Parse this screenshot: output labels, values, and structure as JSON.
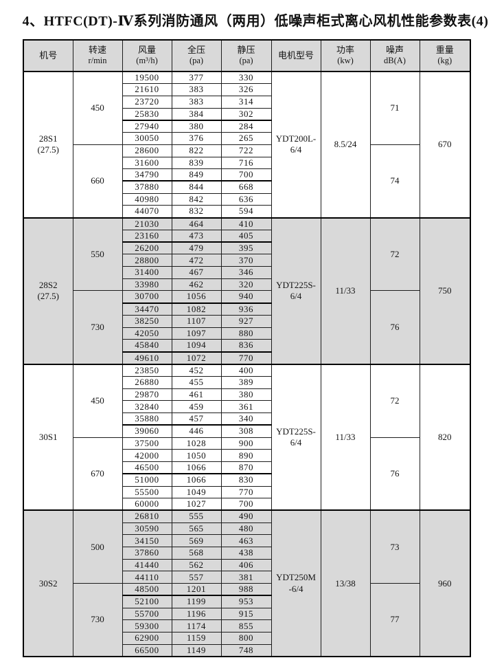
{
  "page": {
    "title": "4、HTFC(DT)-Ⅳ系列消防通风（两用）低噪声柜式离心风机性能参数表(4)"
  },
  "colors": {
    "header_bg": "#d9d9d9",
    "shaded_section_bg": "#d9d9d9",
    "border": "#000000",
    "text": "#141414"
  },
  "table": {
    "columns": [
      {
        "label": "机号",
        "sub": ""
      },
      {
        "label": "转速",
        "sub": "r/min"
      },
      {
        "label": "风量",
        "sub": "(m³/h)"
      },
      {
        "label": "全压",
        "sub": "(pa)"
      },
      {
        "label": "静压",
        "sub": "(pa)"
      },
      {
        "label": "电机型号",
        "sub": ""
      },
      {
        "label": "功率",
        "sub": "(kw)"
      },
      {
        "label": "噪声",
        "sub": "dB(A)"
      },
      {
        "label": "重量",
        "sub": "(kg)"
      }
    ],
    "sections": [
      {
        "model_lines": [
          "28S1",
          "(27.5)"
        ],
        "shaded": false,
        "motor_lines": [
          "YDT200L-",
          "6/4"
        ],
        "power": "8.5/24",
        "weight": "670",
        "thick_after": [
          3,
          8
        ],
        "halves": [
          {
            "speed": "450",
            "noise": "71",
            "rows": [
              [
                19500,
                377,
                330
              ],
              [
                21610,
                383,
                326
              ],
              [
                23720,
                383,
                314
              ],
              [
                25830,
                384,
                302
              ],
              [
                27940,
                380,
                284
              ],
              [
                30050,
                376,
                265
              ]
            ]
          },
          {
            "speed": "660",
            "noise": "74",
            "rows": [
              [
                28600,
                822,
                722
              ],
              [
                31600,
                839,
                716
              ],
              [
                34790,
                849,
                700
              ],
              [
                37880,
                844,
                668
              ],
              [
                40980,
                842,
                636
              ],
              [
                44070,
                832,
                594
              ]
            ]
          }
        ]
      },
      {
        "model_lines": [
          "28S2",
          "(27.5)"
        ],
        "shaded": true,
        "motor_lines": [
          "YDT225S-",
          "6/4"
        ],
        "power": "11/33",
        "weight": "750",
        "thick_after": [
          1,
          6,
          10
        ],
        "halves": [
          {
            "speed": "550",
            "noise": "72",
            "rows": [
              [
                21030,
                464,
                410
              ],
              [
                23160,
                473,
                405
              ],
              [
                26200,
                479,
                395
              ],
              [
                28800,
                472,
                370
              ],
              [
                31400,
                467,
                346
              ],
              [
                33980,
                462,
                320
              ]
            ]
          },
          {
            "speed": "730",
            "noise": "76",
            "rows": [
              [
                30700,
                1056,
                940
              ],
              [
                34470,
                1082,
                936
              ],
              [
                38250,
                1107,
                927
              ],
              [
                42050,
                1097,
                880
              ],
              [
                45840,
                1094,
                836
              ],
              [
                49610,
                1072,
                770
              ]
            ]
          }
        ]
      },
      {
        "model_lines": [
          "30S1"
        ],
        "shaded": false,
        "motor_lines": [
          "YDT225S-",
          "6/4"
        ],
        "power": "11/33",
        "weight": "820",
        "thick_after": [
          4,
          8
        ],
        "halves": [
          {
            "speed": "450",
            "noise": "72",
            "rows": [
              [
                23850,
                452,
                400
              ],
              [
                26880,
                455,
                389
              ],
              [
                29870,
                461,
                380
              ],
              [
                32840,
                459,
                361
              ],
              [
                35880,
                457,
                340
              ],
              [
                39060,
                446,
                308
              ]
            ]
          },
          {
            "speed": "670",
            "noise": "76",
            "rows": [
              [
                37500,
                1028,
                900
              ],
              [
                42000,
                1050,
                890
              ],
              [
                46500,
                1066,
                870
              ],
              [
                51000,
                1066,
                830
              ],
              [
                55500,
                1049,
                770
              ],
              [
                60000,
                1027,
                700
              ]
            ]
          }
        ]
      },
      {
        "model_lines": [
          "30S2"
        ],
        "shaded": true,
        "motor_lines": [
          "YDT250M",
          "-6/4"
        ],
        "power": "13/38",
        "weight": "960",
        "thick_after": [
          6
        ],
        "halves": [
          {
            "speed": "500",
            "noise": "73",
            "rows": [
              [
                26810,
                555,
                490
              ],
              [
                30590,
                565,
                480
              ],
              [
                34150,
                569,
                463
              ],
              [
                37860,
                568,
                438
              ],
              [
                41440,
                562,
                406
              ],
              [
                44110,
                557,
                381
              ]
            ]
          },
          {
            "speed": "730",
            "noise": "77",
            "rows": [
              [
                48500,
                1201,
                988
              ],
              [
                52100,
                1199,
                953
              ],
              [
                55700,
                1196,
                915
              ],
              [
                59300,
                1174,
                855
              ],
              [
                62900,
                1159,
                800
              ],
              [
                66500,
                1149,
                748
              ]
            ]
          }
        ]
      }
    ]
  }
}
